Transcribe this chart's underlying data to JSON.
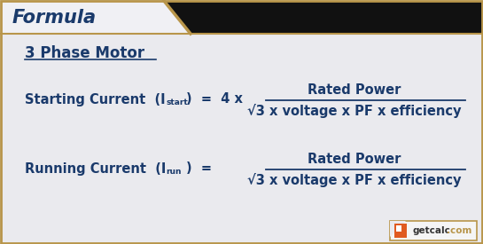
{
  "bg_color": "#eaeaee",
  "header_tab_color": "#f0f0f4",
  "header_black_color": "#111111",
  "header_text": "Formula",
  "header_text_color": "#1a3a6b",
  "header_accent_color": "#b8954a",
  "title_text": "3 Phase Motor",
  "title_color": "#1a3a6b",
  "formula_color": "#1a3a6b",
  "starting_label": "Starting Current  (I",
  "starting_sub": "start",
  "starting_eq": ")  =  4 x",
  "running_label": "Running Current  (I",
  "running_sub": "run",
  "running_eq": ")  =",
  "numerator": "Rated Power",
  "denominator": "√3 x voltage x PF x efficiency",
  "watermark_main": "getcalc",
  "watermark_dot": ".com",
  "border_color": "#b8954a",
  "fig_width": 5.45,
  "fig_height": 2.75,
  "dpi": 100
}
